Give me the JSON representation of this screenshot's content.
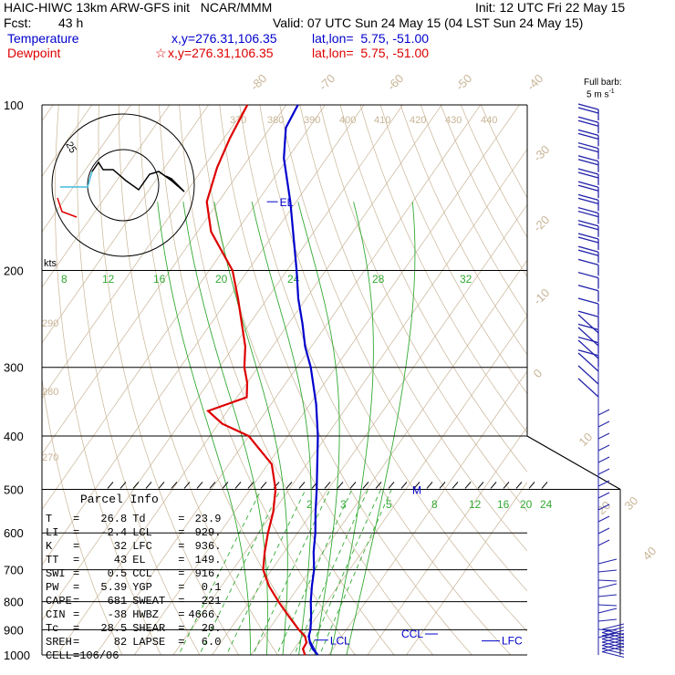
{
  "header": {
    "line1_left": "HAIC-HIWC 13km ARW-GFS init   NCAR/MMM",
    "line1_right": "Init: 12 UTC Fri 22 May 15",
    "fcst_label": "Fcst:",
    "fcst_value": "43 h",
    "valid": "Valid: 07 UTC Sun 24 May 15 (04 LST Sun 24 May 15)",
    "temp_label": "Temperature",
    "temp_xy": "x,y=276.31,106.35",
    "temp_latlon": "lat,lon=  5.75, -51.00",
    "dew_label": "Dewpoint",
    "dew_xy": "x,y=276.31,106.35",
    "dew_latlon": "lat,lon=  5.75, -51.00",
    "barb_title": "Full barb:",
    "barb_units": "5 m s",
    "barb_exp": "-1",
    "temp_color": "#0000cc",
    "dew_color": "#dd0000"
  },
  "parcel": {
    "title": "Parcel Info",
    "rows": [
      {
        "l1": "T",
        "v1": "26.8",
        "l2": "Td",
        "v2": "23.9"
      },
      {
        "l1": "LI",
        "v1": "-2.4",
        "l2": "LCL",
        "v2": "929."
      },
      {
        "l1": "K",
        "v1": "32",
        "l2": "LFC",
        "v2": "936."
      },
      {
        "l1": "TT",
        "v1": "43",
        "l2": "EL",
        "v2": "149."
      },
      {
        "l1": "SWI",
        "v1": "0.5",
        "l2": "CCL",
        "v2": "916."
      },
      {
        "l1": "PW",
        "v1": "5.39",
        "l2": "YGP",
        "v2": "0.1"
      },
      {
        "l1": "CAPE",
        "v1": "681",
        "l2": "SWEAT",
        "v2": "221"
      },
      {
        "l1": "CIN",
        "v1": "-38",
        "l2": "HWBZ",
        "v2": "4666."
      },
      {
        "l1": "Tc",
        "v1": "28.5",
        "l2": "SHEAR",
        "v2": "20."
      },
      {
        "l1": "SREH",
        "v1": "82",
        "l2": "LAPSE",
        "v2": "6.0"
      },
      {
        "l1": "CELL",
        "v1": "106/06",
        "l2": "",
        "v2": ""
      }
    ]
  },
  "chart_data": {
    "type": "line",
    "title": "HAIC-HIWC 13km ARW-GFS init   NCAR/MMM",
    "y_axis": "pressure (hPa), log scale",
    "x_axis": "temperature (°C), skewed",
    "pressure_ticks": [
      100,
      200,
      300,
      400,
      500,
      600,
      700,
      800,
      900,
      1000
    ],
    "isotherm_labels": [
      -80,
      -70,
      -60,
      -50,
      -40,
      -30,
      -20,
      -10,
      0,
      10,
      20,
      30,
      40
    ],
    "theta_labels_top": [
      370,
      380,
      390,
      400,
      410,
      420,
      430,
      440
    ],
    "theta_labels_left": [
      290,
      280,
      270
    ],
    "theta_e_labels": [
      8,
      12,
      16,
      20,
      24,
      28,
      32
    ],
    "mixing_ratio_labels": [
      2,
      3,
      5,
      8,
      12,
      16,
      20,
      24
    ],
    "level_markers": {
      "el": "EL",
      "m": "M",
      "lcl": "LCL",
      "ccl": "CCL",
      "lfc": "LFC"
    },
    "hodograph_ring_label": "25",
    "hodograph_units": "kts",
    "series": [
      {
        "name": "Temperature",
        "color": "#0000cc",
        "points": [
          [
            1000,
            27.2
          ],
          [
            975,
            24.8
          ],
          [
            950,
            23.0
          ],
          [
            925,
            21.5
          ],
          [
            900,
            20.8
          ],
          [
            850,
            18.5
          ],
          [
            800,
            15.8
          ],
          [
            750,
            13.3
          ],
          [
            700,
            10.9
          ],
          [
            650,
            7.6
          ],
          [
            600,
            4.6
          ],
          [
            550,
            0.9
          ],
          [
            500,
            -2.9
          ],
          [
            450,
            -7.3
          ],
          [
            400,
            -12.2
          ],
          [
            350,
            -18.4
          ],
          [
            300,
            -26.4
          ],
          [
            275,
            -31.6
          ],
          [
            250,
            -36.4
          ],
          [
            225,
            -42.0
          ],
          [
            200,
            -47.5
          ],
          [
            175,
            -54.0
          ],
          [
            150,
            -61.5
          ],
          [
            125,
            -71.0
          ],
          [
            110,
            -76.0
          ],
          [
            100,
            -77.0
          ]
        ]
      },
      {
        "name": "Dewpoint",
        "color": "#dd0000",
        "points": [
          [
            1000,
            23.9
          ],
          [
            975,
            22.3
          ],
          [
            950,
            22.1
          ],
          [
            925,
            20.6
          ],
          [
            900,
            17.8
          ],
          [
            850,
            12.7
          ],
          [
            800,
            7.5
          ],
          [
            750,
            2.3
          ],
          [
            700,
            -2.2
          ],
          [
            650,
            -5.0
          ],
          [
            600,
            -7.6
          ],
          [
            550,
            -10.0
          ],
          [
            500,
            -13.5
          ],
          [
            450,
            -19.0
          ],
          [
            400,
            -30.0
          ],
          [
            380,
            -39.0
          ],
          [
            360,
            -45.0
          ],
          [
            340,
            -37.5
          ],
          [
            320,
            -40.0
          ],
          [
            300,
            -43.5
          ],
          [
            275,
            -47.0
          ],
          [
            250,
            -52.0
          ],
          [
            225,
            -57.5
          ],
          [
            200,
            -64.0
          ],
          [
            185,
            -70.0
          ],
          [
            170,
            -76.5
          ],
          [
            150,
            -83.0
          ],
          [
            130,
            -86.5
          ],
          [
            115,
            -88.5
          ],
          [
            100,
            -90.0
          ]
        ]
      }
    ]
  }
}
